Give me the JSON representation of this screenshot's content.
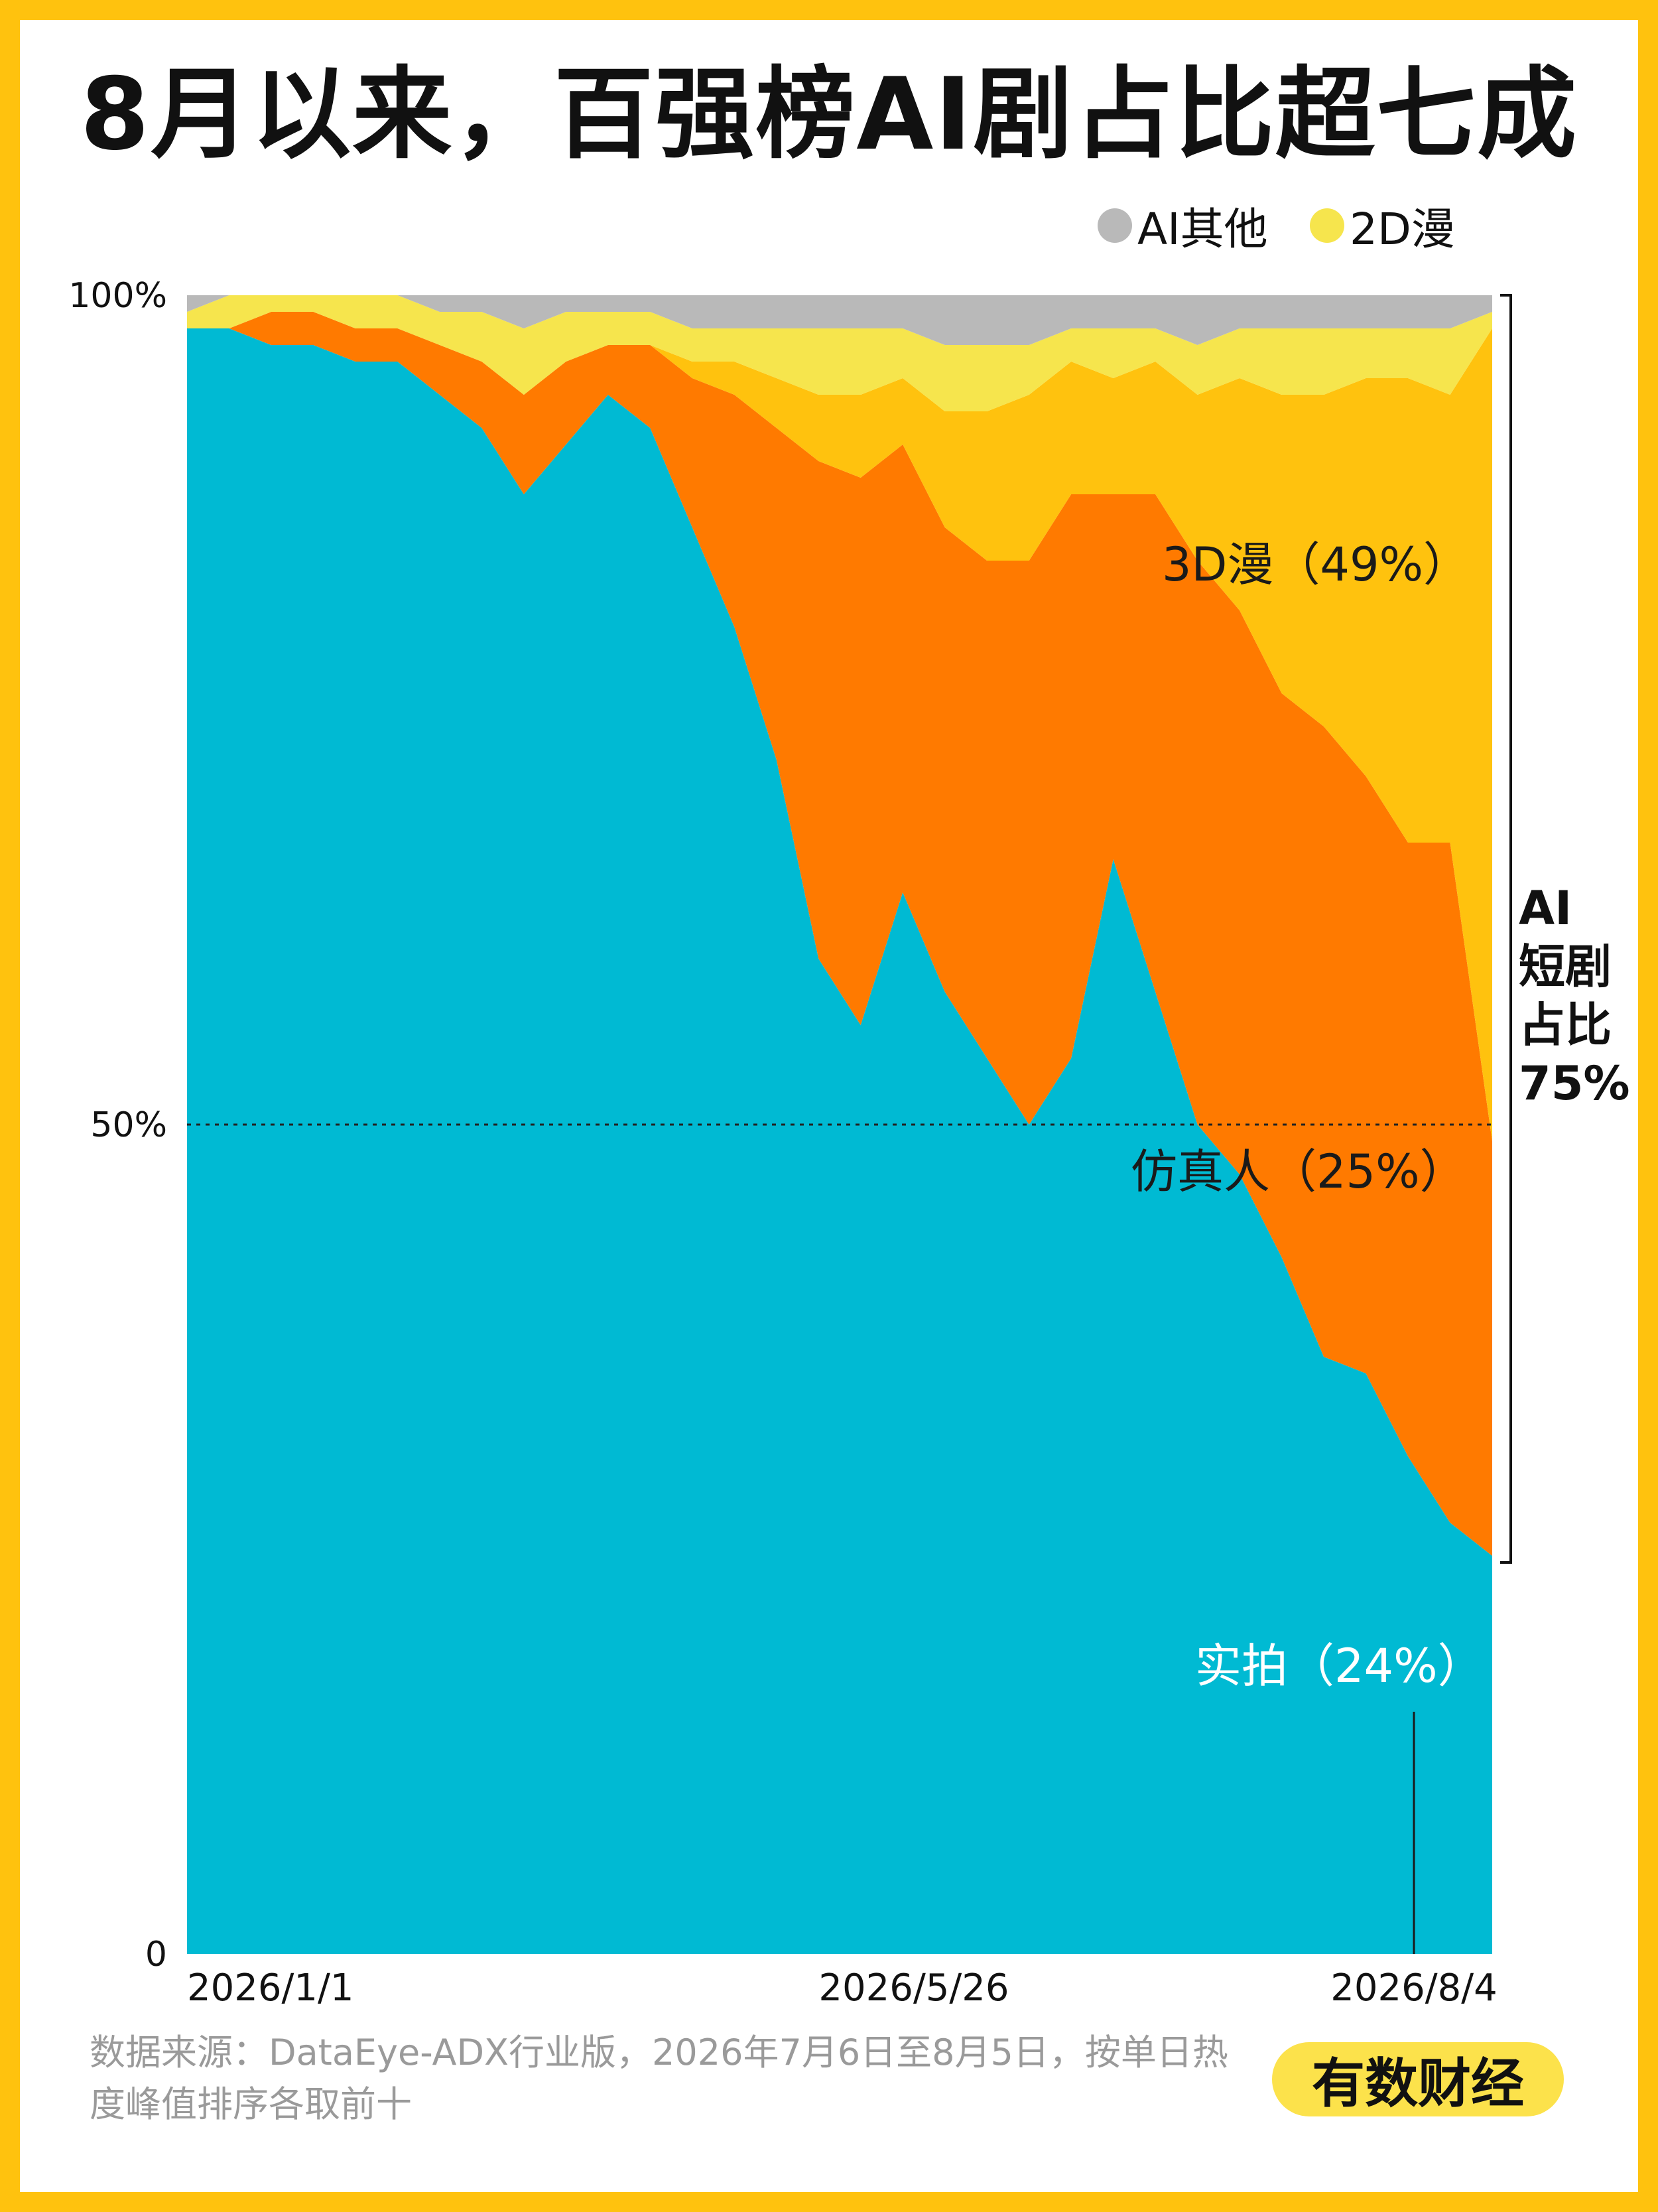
{
  "title": "8月以来，百强榜AI剧占比超七成",
  "legend": [
    {
      "label": "AI其他",
      "color": "#B9B9B9"
    },
    {
      "label": "2D漫",
      "color": "#F6E54D"
    }
  ],
  "annotation": {
    "lines": [
      "AI",
      "短剧",
      "占比",
      "75%"
    ]
  },
  "source_note": "数据来源：DataEye-ADX行业版，2026年7月6日至8月5日，按单日热度峰值排序各取前十",
  "brand": "有数财经",
  "chart_data": {
    "type": "area",
    "stacked": true,
    "title": "8月以来，百强榜AI剧占比超七成",
    "xlabel": "",
    "ylabel": "",
    "ylim": [
      0,
      100
    ],
    "y_ticks": [
      "0",
      "50%",
      "100%"
    ],
    "x_ticks": [
      "2026/1/1",
      "2026/5/26",
      "2026/8/4"
    ],
    "x": [
      "2026/1/1",
      "2026/1/8",
      "2026/1/15",
      "2026/1/22",
      "2026/1/29",
      "2026/2/5",
      "2026/2/12",
      "2026/2/19",
      "2026/2/26",
      "2026/3/5",
      "2026/3/12",
      "2026/3/19",
      "2026/3/26",
      "2026/4/2",
      "2026/4/9",
      "2026/4/16",
      "2026/4/23",
      "2026/4/30",
      "2026/5/7",
      "2026/5/14",
      "2026/5/21",
      "2026/5/28",
      "2026/6/4",
      "2026/6/11",
      "2026/6/18",
      "2026/6/25",
      "2026/7/2",
      "2026/7/9",
      "2026/7/16",
      "2026/7/23",
      "2026/7/30",
      "2026/8/4"
    ],
    "series": [
      {
        "name": "实拍",
        "label": "实拍（24%）",
        "color": "#00BAD3",
        "values": [
          98,
          98,
          97,
          97,
          96,
          96,
          94,
          92,
          88,
          91,
          94,
          92,
          86,
          80,
          72,
          60,
          56,
          64,
          58,
          54,
          50,
          54,
          66,
          58,
          50,
          47,
          42,
          36,
          35,
          30,
          26,
          24
        ]
      },
      {
        "name": "仿真人",
        "label": "仿真人（25%）",
        "color": "#FF7A00",
        "values": [
          0,
          0,
          2,
          2,
          2,
          2,
          3,
          4,
          6,
          5,
          3,
          5,
          9,
          14,
          20,
          30,
          33,
          27,
          28,
          30,
          34,
          34,
          22,
          30,
          34,
          34,
          34,
          38,
          36,
          37,
          41,
          25
        ]
      },
      {
        "name": "3D漫",
        "label": "3D漫（49%）",
        "color": "#FFC20E",
        "values": [
          0,
          0,
          0,
          0,
          0,
          0,
          0,
          0,
          0,
          0,
          0,
          0,
          1,
          2,
          3,
          4,
          5,
          4,
          7,
          9,
          10,
          8,
          7,
          8,
          10,
          14,
          18,
          20,
          24,
          28,
          27,
          49
        ]
      },
      {
        "name": "2D漫",
        "color": "#F6E54D",
        "values": [
          1,
          2,
          1,
          1,
          2,
          2,
          2,
          3,
          4,
          3,
          2,
          2,
          2,
          2,
          3,
          4,
          4,
          3,
          4,
          4,
          3,
          2,
          3,
          2,
          3,
          3,
          4,
          4,
          3,
          3,
          4,
          1
        ]
      },
      {
        "name": "AI其他",
        "color": "#B9B9B9",
        "values": [
          1,
          0,
          0,
          0,
          0,
          0,
          1,
          1,
          2,
          1,
          1,
          1,
          2,
          2,
          2,
          2,
          2,
          2,
          3,
          3,
          3,
          2,
          2,
          2,
          3,
          2,
          2,
          2,
          2,
          2,
          2,
          1
        ]
      }
    ],
    "reference_line": {
      "label": "",
      "y": 50
    },
    "annotation_bracket": {
      "text": "AI短剧占比75%",
      "from": 24,
      "to": 100
    }
  }
}
